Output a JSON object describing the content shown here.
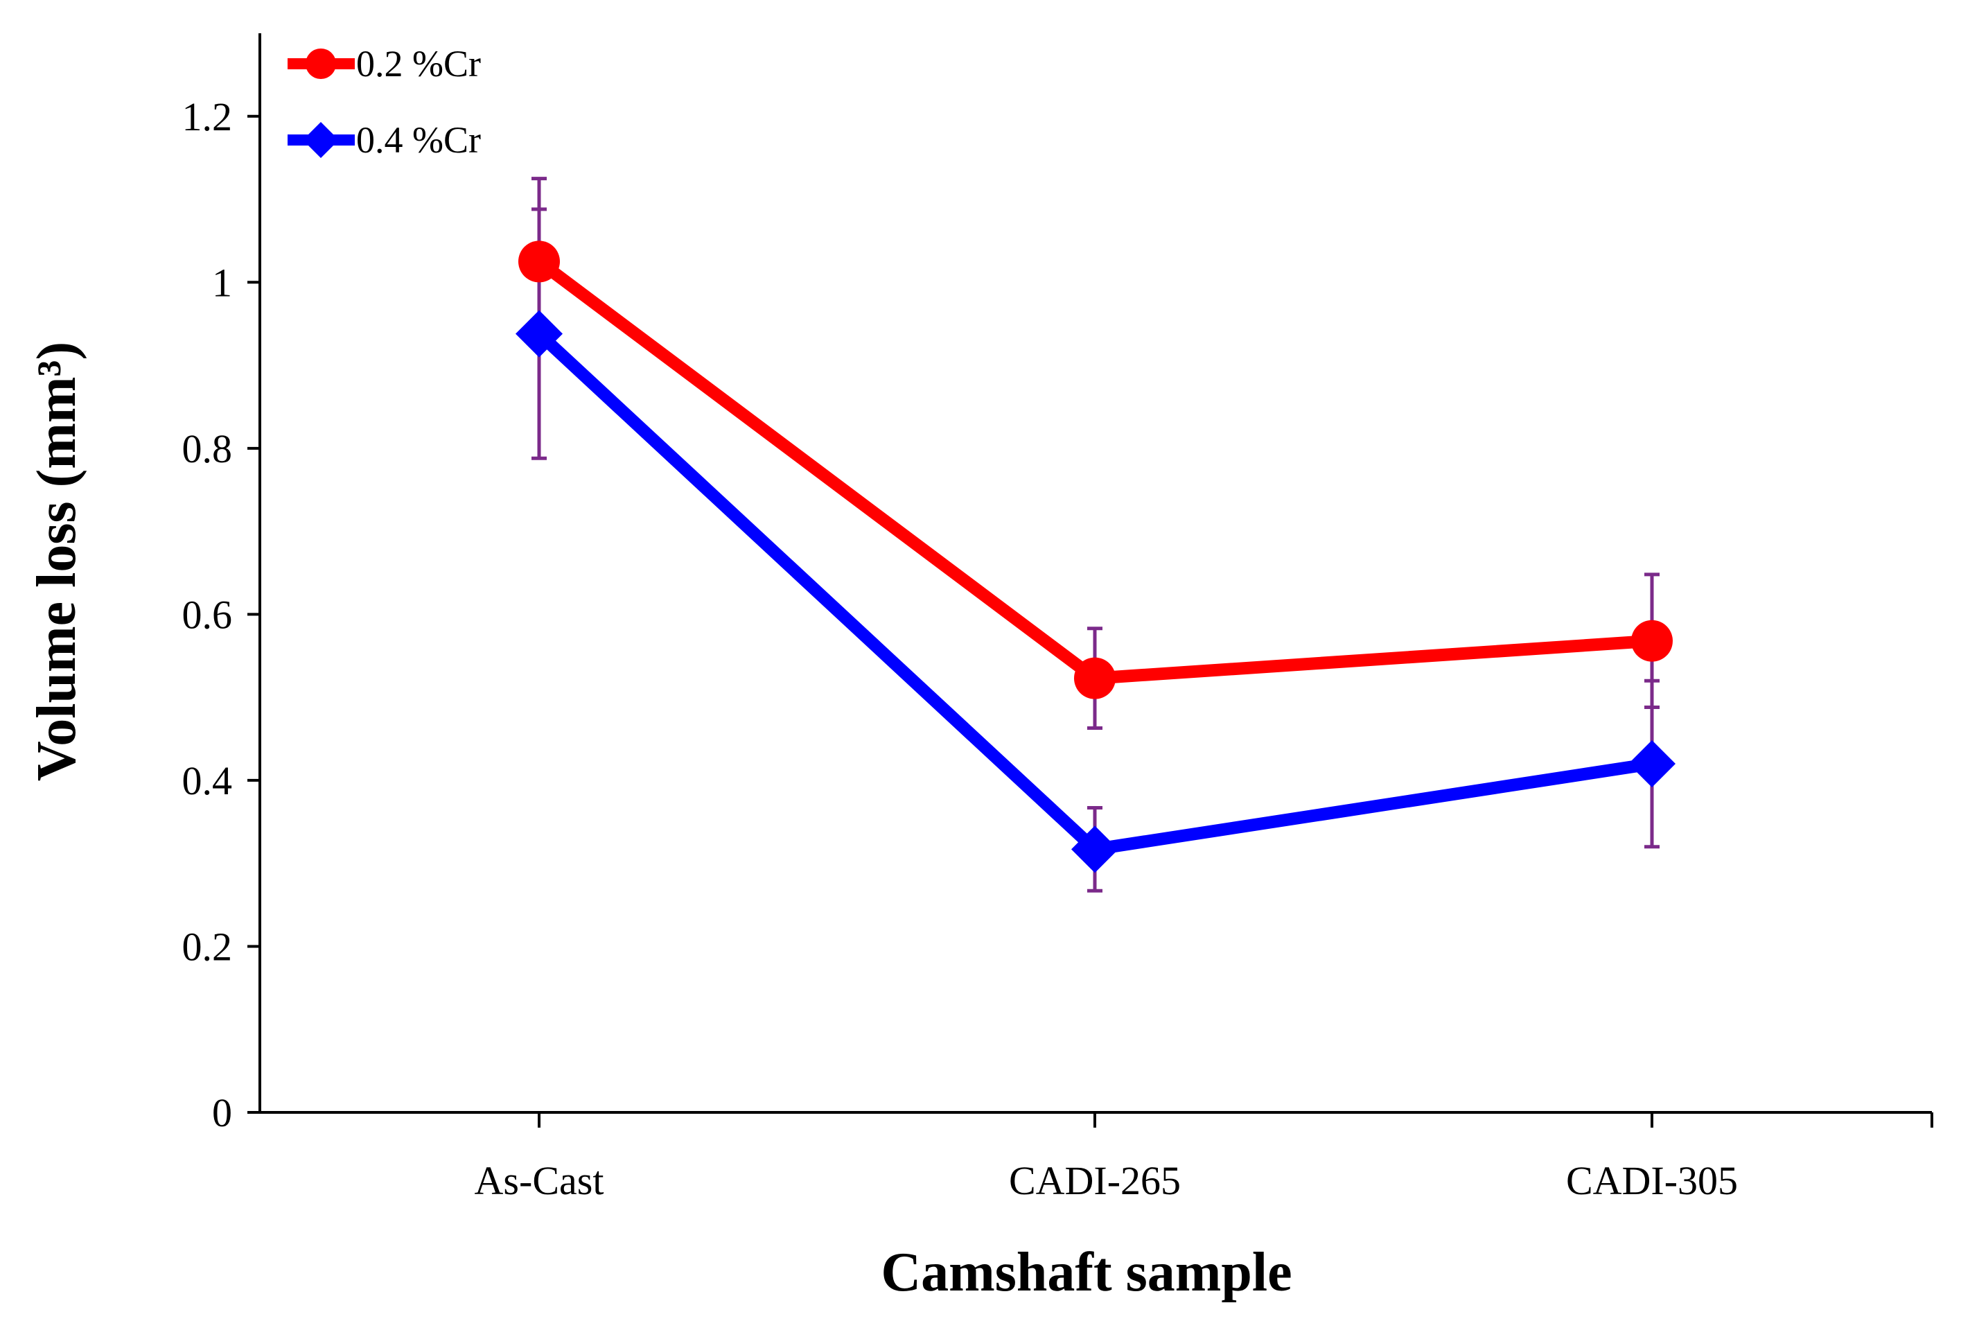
{
  "chart_data": {
    "type": "line",
    "title": "",
    "xlabel": "Camshaft sample",
    "ylabel": "Volume loss  (mm³)",
    "categories": [
      "As-Cast",
      "CADI-265",
      "CADI-305"
    ],
    "ylim": [
      0,
      1.3
    ],
    "yticks": [
      "0",
      "0.2",
      "0.4",
      "0.6",
      "0.8",
      "1",
      "1.2"
    ],
    "ytick_values": [
      0,
      0.2,
      0.4,
      0.6,
      0.8,
      1.0,
      1.2
    ],
    "grid": false,
    "legend_position": "top-left",
    "error_bar_color": "#7b2a8a",
    "series": [
      {
        "name": "0.2 %Cr",
        "values": [
          1.025,
          0.523,
          0.568
        ],
        "error_low": [
          0.935,
          0.463,
          0.488
        ],
        "error_high": [
          1.125,
          0.583,
          0.648
        ],
        "color": "#ff0000",
        "marker": "circle"
      },
      {
        "name": "0.4 %Cr",
        "values": [
          0.938,
          0.317,
          0.42
        ],
        "error_low": [
          0.788,
          0.267,
          0.32
        ],
        "error_high": [
          1.088,
          0.367,
          0.52
        ],
        "color": "#0000ff",
        "marker": "diamond"
      }
    ]
  }
}
